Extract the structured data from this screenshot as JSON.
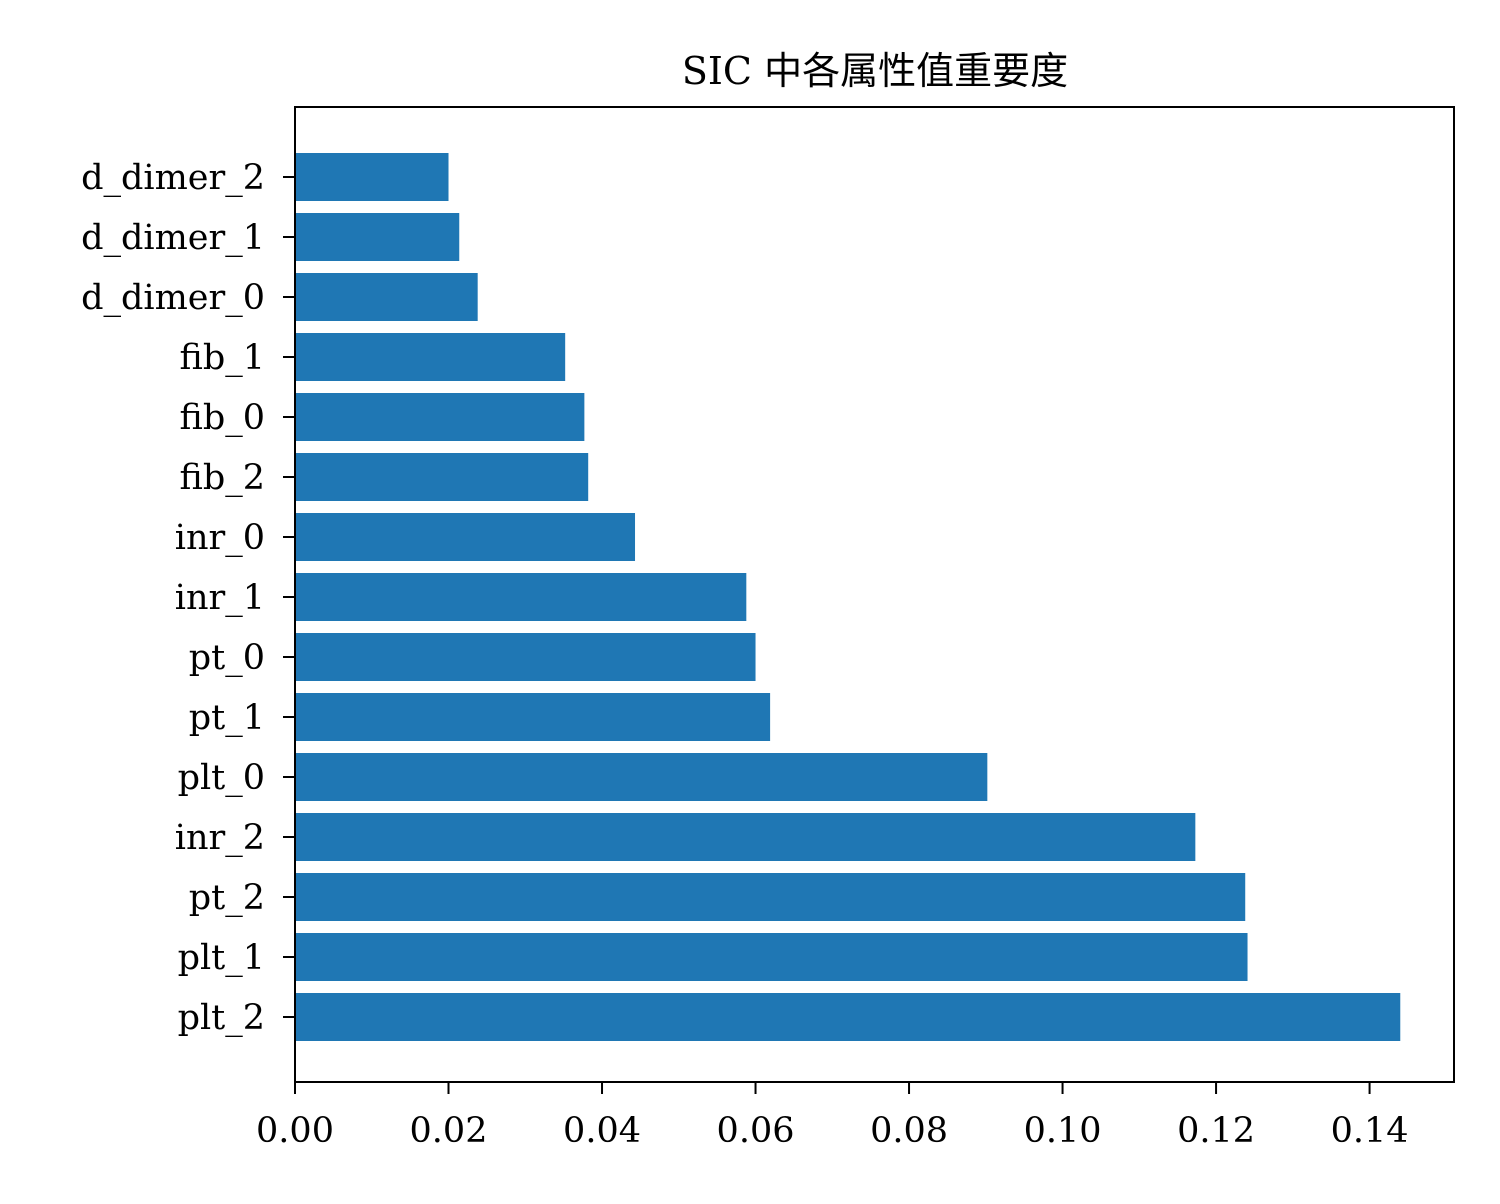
{
  "chart_data": {
    "type": "bar",
    "orientation": "horizontal",
    "title": "SIC 中各属性值重要度",
    "xlabel": "",
    "ylabel": "",
    "categories": [
      "d_dimer_2",
      "d_dimer_1",
      "d_dimer_0",
      "fib_1",
      "fib_0",
      "fib_2",
      "inr_0",
      "inr_1",
      "pt_0",
      "pt_1",
      "plt_0",
      "inr_2",
      "pt_2",
      "plt_1",
      "plt_2"
    ],
    "values": [
      0.02,
      0.0214,
      0.0238,
      0.0352,
      0.0377,
      0.0382,
      0.0443,
      0.0588,
      0.06,
      0.0619,
      0.0902,
      0.1173,
      0.1238,
      0.1241,
      0.144
    ],
    "xlim": [
      0,
      0.151
    ],
    "xticks": [
      "0.00",
      "0.02",
      "0.04",
      "0.06",
      "0.08",
      "0.10",
      "0.12",
      "0.14"
    ],
    "bar_color": "#1f77b4",
    "grid": false,
    "legend": "none"
  }
}
